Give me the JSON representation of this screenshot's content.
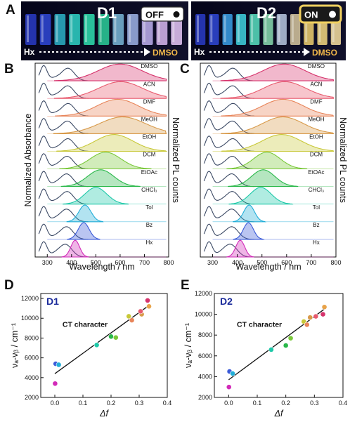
{
  "panel_A": {
    "label": "A",
    "left": {
      "title": "D1",
      "switch": "OFF",
      "from": "Hx",
      "to": "DMSO",
      "vial_colors": [
        "#2a3cc8",
        "#2f48d8",
        "#2bb3c8",
        "#2fd3c8",
        "#2fe0b0",
        "#2ccf9a",
        "#7ab8d8",
        "#9fb4e8",
        "#c0b0f0",
        "#d8b8f0",
        "#e8c8f8"
      ]
    },
    "right": {
      "title": "D2",
      "switch": "ON",
      "from": "Hx",
      "to": "DMSO",
      "vial_colors": [
        "#2a3cc8",
        "#2f48d8",
        "#3aa0e8",
        "#3fd3e0",
        "#58e0c0",
        "#8adcb0",
        "#b8c8e0",
        "#d8c8a0",
        "#f0d070",
        "#f5d880",
        "#f8e0a0"
      ]
    }
  },
  "panel_B": {
    "label": "B"
  },
  "panel_C": {
    "label": "C"
  },
  "spectra_axes": {
    "xlabel": "Wavelength / nm",
    "ylabel_left": "Normalized Absorbance",
    "ylabel_right": "Normalized PL counts",
    "xticks": [
      "300",
      "400",
      "500",
      "600",
      "700",
      "800"
    ]
  },
  "solvents": [
    {
      "name": "DMSO",
      "color": "#d6336c",
      "B_abs": 385,
      "B_pl": 600,
      "C_abs": 382,
      "C_pl": 590
    },
    {
      "name": "ACN",
      "color": "#e85a6e",
      "B_abs": 384,
      "B_pl": 602,
      "C_abs": 381,
      "C_pl": 592
    },
    {
      "name": "DMF",
      "color": "#e8855a",
      "B_abs": 386,
      "B_pl": 590,
      "C_abs": 383,
      "C_pl": 585
    },
    {
      "name": "MeOH",
      "color": "#d89a4a",
      "B_abs": 383,
      "B_pl": 610,
      "C_abs": 380,
      "C_pl": 585
    },
    {
      "name": "EtOH",
      "color": "#c8c838",
      "B_abs": 385,
      "B_pl": 575,
      "C_abs": 382,
      "C_pl": 580
    },
    {
      "name": "DCM",
      "color": "#7ac83a",
      "B_abs": 382,
      "B_pl": 540,
      "C_abs": 380,
      "C_pl": 520
    },
    {
      "name": "EtOAc",
      "color": "#2ab84a",
      "B_abs": 380,
      "B_pl": 520,
      "C_abs": 378,
      "C_pl": 505
    },
    {
      "name": "CHCl₃",
      "color": "#1ec8a8",
      "B_abs": 382,
      "B_pl": 500,
      "C_abs": 380,
      "C_pl": 495
    },
    {
      "name": "Tol",
      "color": "#22aed8",
      "B_abs": 380,
      "B_pl": 455,
      "C_abs": 378,
      "C_pl": 448
    },
    {
      "name": "Bz",
      "color": "#3a5ad8",
      "B_abs": 380,
      "B_pl": 450,
      "C_abs": 378,
      "C_pl": 445
    },
    {
      "name": "Hx",
      "color": "#d22ab8",
      "B_abs": 375,
      "B_pl": 415,
      "C_abs": 372,
      "C_pl": 412
    }
  ],
  "chart_data": [
    {
      "type": "scatter",
      "panel": "D",
      "inset_label": "D1",
      "annotation": "CT character",
      "xlabel": "Δf",
      "ylabel": "νₐ-νᵦ / cm⁻¹",
      "xlim": [
        -0.05,
        0.4
      ],
      "ylim": [
        2000,
        12500
      ],
      "xticks": [
        "0.0",
        "0.1",
        "0.2",
        "0.3",
        "0.4"
      ],
      "yticks": [
        "2000",
        "4000",
        "6000",
        "8000",
        "10000",
        "12000"
      ],
      "points": [
        {
          "x": 0.001,
          "y": 3400,
          "color": "#d22ab8"
        },
        {
          "x": 0.003,
          "y": 5400,
          "color": "#3a5ad8"
        },
        {
          "x": 0.014,
          "y": 5300,
          "color": "#22aed8"
        },
        {
          "x": 0.149,
          "y": 7300,
          "color": "#1ec8a8"
        },
        {
          "x": 0.2,
          "y": 8150,
          "color": "#2ab84a"
        },
        {
          "x": 0.217,
          "y": 8050,
          "color": "#7ac83a"
        },
        {
          "x": 0.263,
          "y": 10200,
          "color": "#c8c838"
        },
        {
          "x": 0.274,
          "y": 9800,
          "color": "#e8855a"
        },
        {
          "x": 0.309,
          "y": 10400,
          "color": "#d89a4a"
        },
        {
          "x": 0.305,
          "y": 10700,
          "color": "#e85a6e"
        },
        {
          "x": 0.33,
          "y": 11800,
          "color": "#d6336c"
        },
        {
          "x": 0.335,
          "y": 11200,
          "color": "#e8a34a"
        }
      ],
      "fit": {
        "x": [
          0.0,
          0.335
        ],
        "y": [
          4400,
          11300
        ]
      }
    },
    {
      "type": "scatter",
      "panel": "E",
      "inset_label": "D2",
      "annotation": "CT character",
      "xlabel": "Δf",
      "ylabel": "νₐ-νᵦ / cm⁻¹",
      "xlim": [
        -0.05,
        0.4
      ],
      "ylim": [
        2000,
        12000
      ],
      "xticks": [
        "0.0",
        "0.1",
        "0.2",
        "0.3",
        "0.4"
      ],
      "yticks": [
        "2000",
        "4000",
        "6000",
        "8000",
        "10000",
        "12000"
      ],
      "points": [
        {
          "x": 0.001,
          "y": 3000,
          "color": "#d22ab8"
        },
        {
          "x": 0.003,
          "y": 4500,
          "color": "#3a5ad8"
        },
        {
          "x": 0.014,
          "y": 4300,
          "color": "#22aed8"
        },
        {
          "x": 0.149,
          "y": 6600,
          "color": "#1ec8a8"
        },
        {
          "x": 0.2,
          "y": 7000,
          "color": "#2ab84a"
        },
        {
          "x": 0.217,
          "y": 7700,
          "color": "#7ac83a"
        },
        {
          "x": 0.263,
          "y": 9300,
          "color": "#c8c838"
        },
        {
          "x": 0.274,
          "y": 9000,
          "color": "#e8855a"
        },
        {
          "x": 0.285,
          "y": 9700,
          "color": "#d89a4a"
        },
        {
          "x": 0.305,
          "y": 9800,
          "color": "#e85a6e"
        },
        {
          "x": 0.33,
          "y": 10000,
          "color": "#d6336c"
        },
        {
          "x": 0.335,
          "y": 10700,
          "color": "#e8a34a"
        }
      ],
      "fit": {
        "x": [
          0.0,
          0.335
        ],
        "y": [
          3700,
          10500
        ]
      }
    }
  ]
}
